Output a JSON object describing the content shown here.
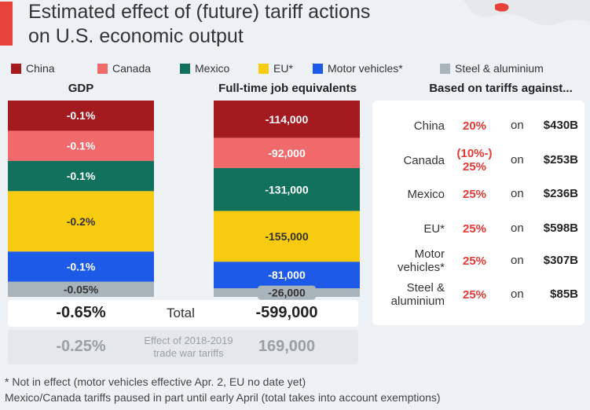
{
  "title_line1": "Estimated effect of (future) tariff actions",
  "title_line2": "on U.S. economic output",
  "accent_color": "#e8433a",
  "legend": [
    {
      "label": "China",
      "color": "#a31a1f"
    },
    {
      "label": "Canada",
      "color": "#f06a6b"
    },
    {
      "label": "Mexico",
      "color": "#12715c"
    },
    {
      "label": "EU*",
      "color": "#f7cb0f"
    },
    {
      "label": "Motor vehicles*",
      "color": "#1e5ae8"
    },
    {
      "label": "Steel & aluminium",
      "color": "#a8b3ba"
    }
  ],
  "headers": {
    "gdp": "GDP",
    "jobs": "Full-time job equivalents",
    "panel": "Based on tariffs against..."
  },
  "chart_data": {
    "type": "bar",
    "title": "Estimated effect of (future) tariff actions on U.S. economic output",
    "categories": [
      "China",
      "Canada",
      "Mexico",
      "EU*",
      "Motor vehicles*",
      "Steel & aluminium"
    ],
    "series": [
      {
        "name": "GDP",
        "unit": "%",
        "values": [
          -0.1,
          -0.1,
          -0.1,
          -0.2,
          -0.1,
          -0.05
        ],
        "labels": [
          "-0.1%",
          "-0.1%",
          "-0.1%",
          "-0.2%",
          "-0.1%",
          "-0.05%"
        ]
      },
      {
        "name": "Full-time job equivalents",
        "values": [
          -114000,
          -92000,
          -131000,
          -155000,
          -81000,
          -26000
        ],
        "labels": [
          "-114,000",
          "-92,000",
          "-131,000",
          "-155,000",
          "-81,000",
          "-26,000"
        ]
      }
    ],
    "stacked": true
  },
  "totals": {
    "label": "Total",
    "gdp": "-0.65%",
    "jobs": "-599,000"
  },
  "trade_war": {
    "label_line1": "Effect of 2018-2019",
    "label_line2": "trade war tariffs",
    "gdp": "-0.25%",
    "jobs": "169,000"
  },
  "panel": {
    "on": "on",
    "rows": [
      {
        "name": [
          "China"
        ],
        "rate": [
          "20%"
        ],
        "amount": "$430B"
      },
      {
        "name": [
          "Canada"
        ],
        "rate": [
          "(10%-)",
          "25%"
        ],
        "amount": "$253B"
      },
      {
        "name": [
          "Mexico"
        ],
        "rate": [
          "25%"
        ],
        "amount": "$236B"
      },
      {
        "name": [
          "EU*"
        ],
        "rate": [
          "25%"
        ],
        "amount": "$598B"
      },
      {
        "name": [
          "Motor",
          "vehicles*"
        ],
        "rate": [
          "25%"
        ],
        "amount": "$307B"
      },
      {
        "name": [
          "Steel &",
          "aluminium"
        ],
        "rate": [
          "25%"
        ],
        "amount": "$85B"
      }
    ]
  },
  "footnotes": [
    "* Not in effect (motor vehicles effective Apr. 2, EU no date yet)",
    "Mexico/Canada tariffs paused in part until early April (total takes into account exemptions)"
  ]
}
